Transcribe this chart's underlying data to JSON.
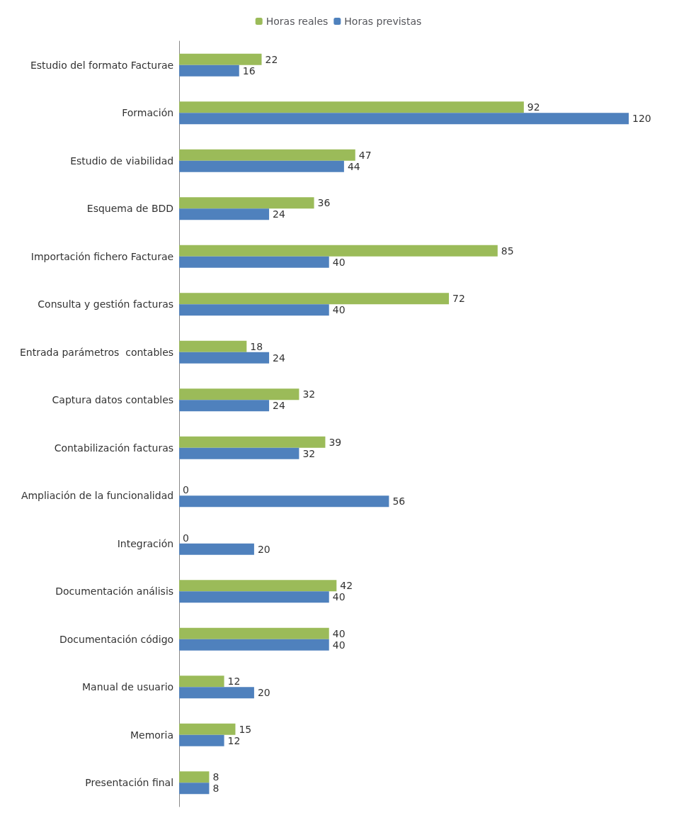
{
  "chart_data": {
    "type": "bar",
    "orientation": "horizontal",
    "data_labels": true,
    "legend": "top",
    "grid": false,
    "categories": [
      "Estudio del formato Facturae",
      "Formación",
      "Estudio de viabilidad",
      "Esquema de BDD",
      "Importación fichero Facturae",
      "Consulta y gestión facturas",
      "Entrada parámetros  contables",
      "Captura datos contables",
      "Contabilización facturas",
      "Ampliación de la funcionalidad",
      "Integración",
      "Documentación análisis",
      "Documentación código",
      "Manual de usuario",
      "Memoria",
      "Presentación final"
    ],
    "series": [
      {
        "name": "Horas reales",
        "color": "#9bbb59",
        "values": [
          22,
          92,
          47,
          36,
          85,
          72,
          18,
          32,
          39,
          0,
          0,
          42,
          40,
          12,
          15,
          8
        ]
      },
      {
        "name": "Horas previstas",
        "color": "#4f81bd",
        "values": [
          16,
          120,
          44,
          24,
          40,
          40,
          24,
          24,
          32,
          56,
          20,
          40,
          40,
          20,
          12,
          8
        ]
      }
    ]
  }
}
